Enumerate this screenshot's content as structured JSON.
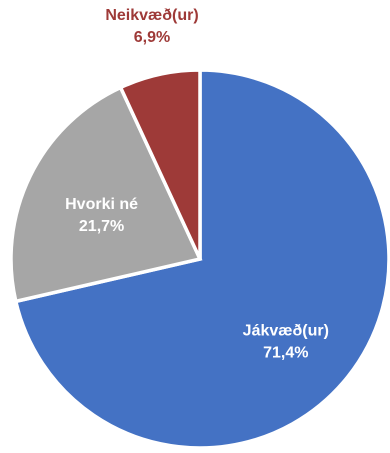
{
  "chart_data": {
    "type": "pie",
    "title": "",
    "legend": "none",
    "start_angle_deg": 0,
    "direction": "clockwise",
    "slices": [
      {
        "name": "Jákvæð(ur)",
        "value": 71.4,
        "value_label": "71,4%",
        "color": "#4472C4",
        "label_color": "#ffffff"
      },
      {
        "name": "Hvorki né",
        "value": 21.7,
        "value_label": "21,7%",
        "color": "#A6A6A6",
        "label_color": "#ffffff"
      },
      {
        "name": "Neikvæð(ur)",
        "value": 6.9,
        "value_label": "6,9%",
        "color": "#9E3A38",
        "label_color": "#9E3A38"
      }
    ]
  }
}
